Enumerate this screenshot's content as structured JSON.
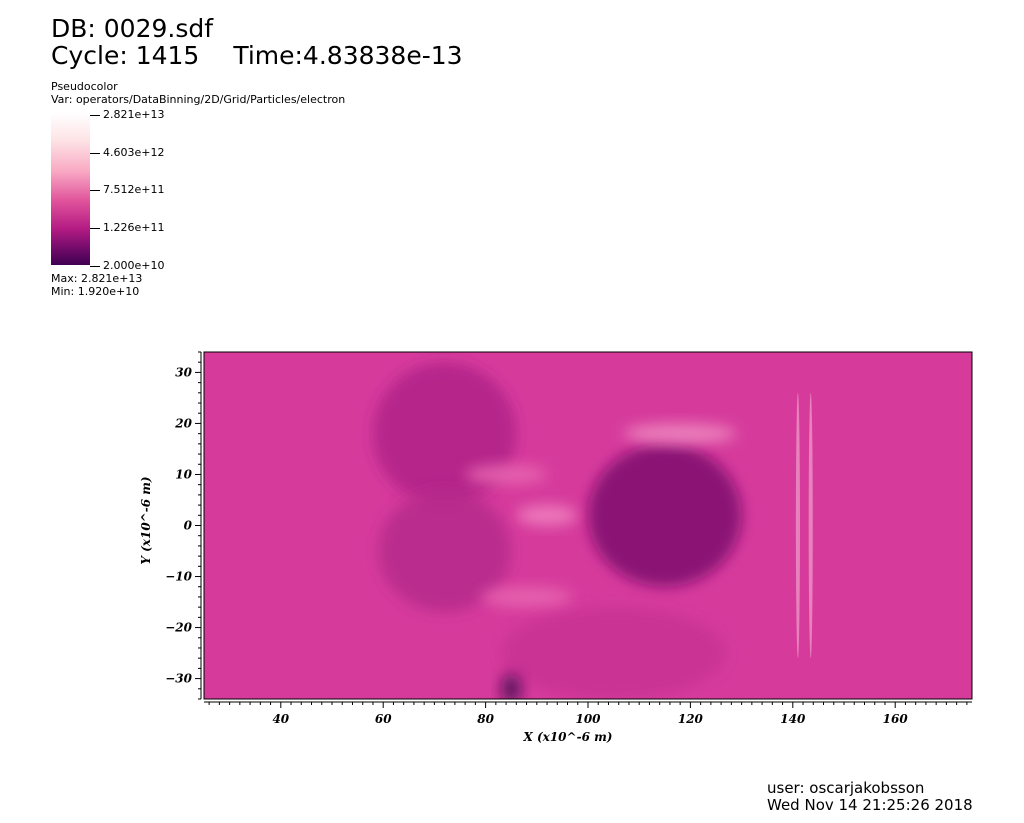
{
  "header": {
    "db": "DB: 0029.sdf",
    "cycle": "Cycle: 1415",
    "time": "Time:4.83838e-13"
  },
  "legend": {
    "kind": "Pseudocolor",
    "var": "Var: operators/DataBinning/2D/Grid/Particles/electron",
    "ticks": [
      "2.821e+13",
      "4.603e+12",
      "7.512e+11",
      "1.226e+11",
      "2.000e+10"
    ],
    "max": "Max: 2.821e+13",
    "min": "Min: 1.920e+10",
    "colormap": [
      "#ffffff",
      "#fde3e6",
      "#f9aac4",
      "#e0529b",
      "#b41c84",
      "#6e0a69",
      "#3f0050"
    ]
  },
  "footer": {
    "user": "user: oscarjakobsson",
    "date": "Wed Nov 14 21:25:26 2018"
  },
  "chart_data": {
    "type": "heatmap",
    "xlabel": "X (x10^-6 m)",
    "ylabel": "Y (x10^-6 m)",
    "xlim": [
      25,
      175
    ],
    "ylim": [
      -34,
      34
    ],
    "x_ticks": [
      40,
      60,
      80,
      100,
      120,
      140,
      160
    ],
    "y_ticks": [
      30,
      20,
      10,
      0,
      -10,
      -20,
      -30
    ],
    "x_tick_labels": [
      "40",
      "60",
      "80",
      "100",
      "120",
      "140",
      "160"
    ],
    "y_tick_labels": [
      "30",
      "20",
      "10",
      "0",
      "−10",
      "−20",
      "−30"
    ],
    "background_color": "#d63b9c",
    "features": [
      {
        "name": "dense cavity",
        "x": 115,
        "y": 2,
        "rx": 15,
        "ry": 14,
        "color": "#7d0b6e"
      },
      {
        "name": "upper left lobe",
        "x": 72,
        "y": 18,
        "rx": 14,
        "ry": 14,
        "color": "#b02288"
      },
      {
        "name": "lower left lobe",
        "x": 72,
        "y": -5,
        "rx": 13,
        "ry": 12,
        "color": "#b62a8b"
      },
      {
        "name": "lower right region",
        "x": 105,
        "y": -25,
        "rx": 22,
        "ry": 9,
        "color": "#c83393"
      },
      {
        "name": "filament A",
        "x": 92,
        "y": 2,
        "rx": 6,
        "ry": 2,
        "color": "#f083c0"
      },
      {
        "name": "filament B",
        "x": 84,
        "y": 10,
        "rx": 8,
        "ry": 2,
        "color": "#e866b0"
      },
      {
        "name": "filament C",
        "x": 88,
        "y": -14,
        "rx": 9,
        "ry": 2,
        "color": "#e866b0"
      },
      {
        "name": "upper arc",
        "x": 118,
        "y": 18,
        "rx": 11,
        "ry": 2,
        "color": "#ee8ac0"
      },
      {
        "name": "vertical stripe 1",
        "x": 141,
        "y": 0,
        "rx": 0.4,
        "ry": 26,
        "color": "#e98bc1"
      },
      {
        "name": "vertical stripe 2",
        "x": 143.5,
        "y": 0,
        "rx": 0.4,
        "ry": 26,
        "color": "#e98bc1"
      },
      {
        "name": "bottom dark spot",
        "x": 85,
        "y": -32,
        "rx": 2,
        "ry": 3,
        "color": "#4d0a54"
      }
    ]
  }
}
